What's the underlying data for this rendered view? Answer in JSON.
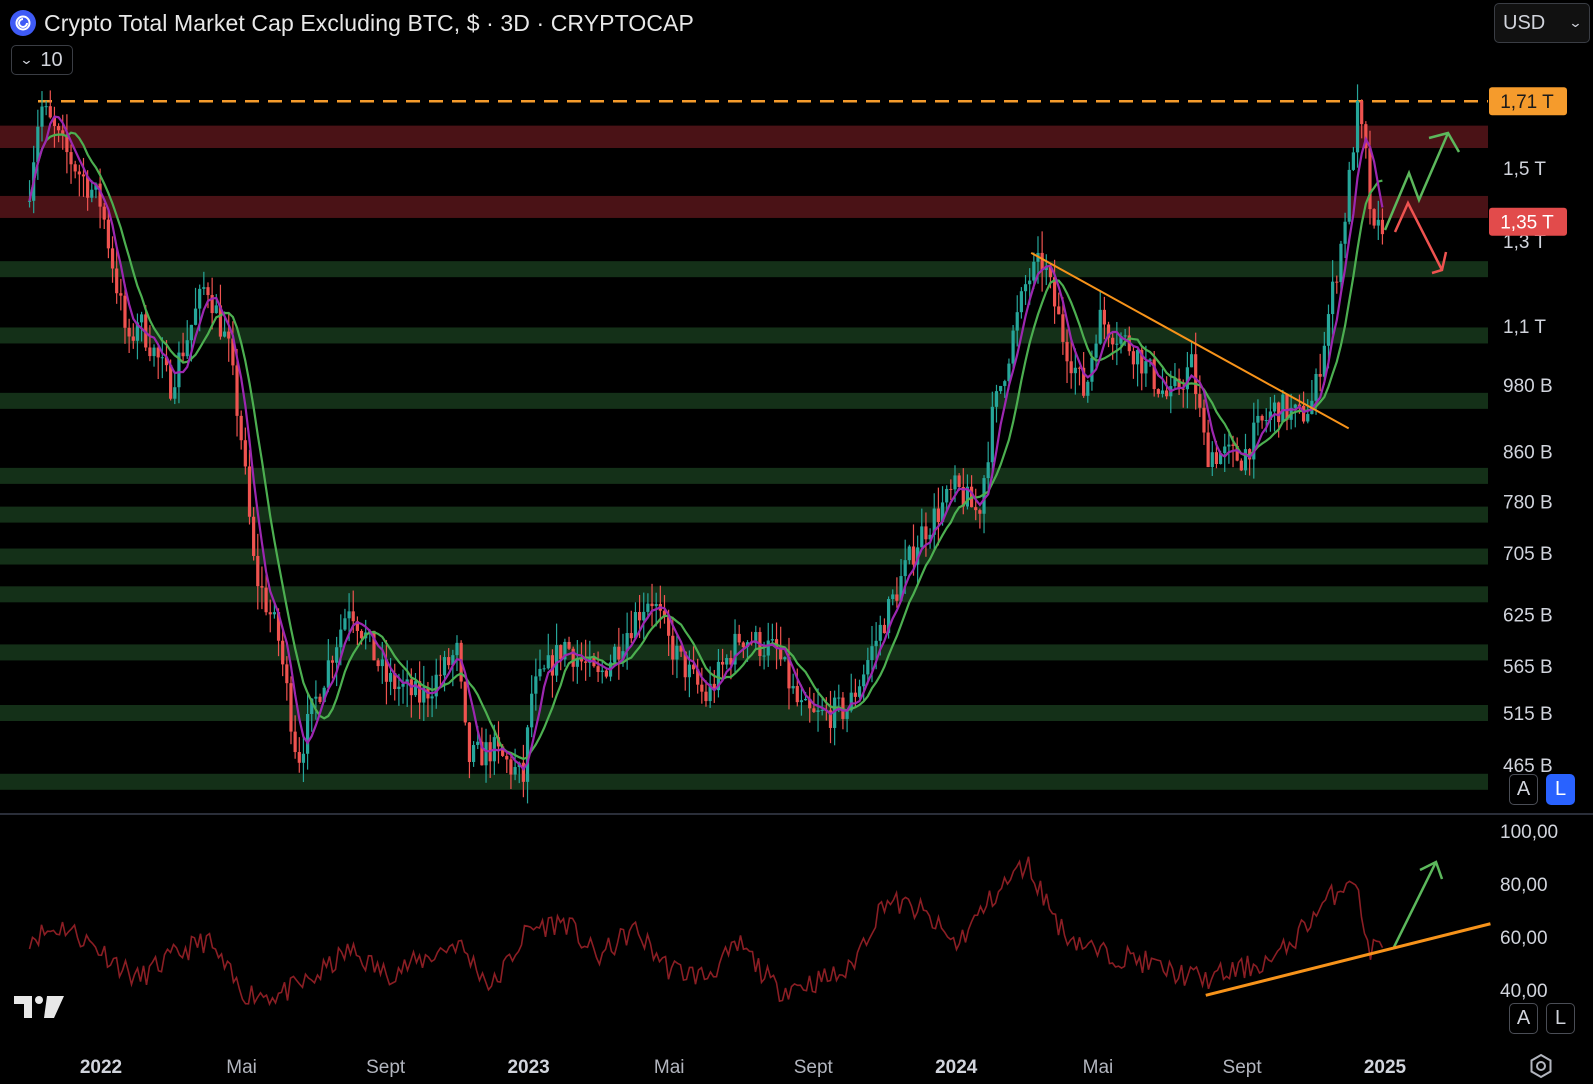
{
  "header": {
    "title": "Crypto Total Market Cap Excluding BTC, $ · 3D · CRYPTOCAP",
    "collapse_value": "10",
    "currency": "USD"
  },
  "scale_buttons": {
    "auto": "A",
    "log": "L"
  },
  "colors": {
    "background": "#000000",
    "bull_candle": "#26a69a",
    "bear_candle": "#ef5350",
    "ma_fast": "#9c27b0",
    "ma_slow": "#4caf50",
    "resistance_zone": "#4a1216",
    "support_zone": "#143018",
    "trendline": "#f7931a",
    "rsi_line": "#8b1e24",
    "up_arrow": "#5cb85c",
    "down_arrow": "#ef5350",
    "ath_tag": "#f59b2c",
    "current_tag": "#e24b4b"
  },
  "chart_data": [
    {
      "type": "candlestick",
      "title": "Crypto Total Market Cap Excluding BTC, $ · 3D · CRYPTOCAP",
      "scale": "log",
      "x_labels": [
        "2022",
        "Mai",
        "Sept",
        "2023",
        "Mai",
        "Sept",
        "2024",
        "Mai",
        "Sept",
        "2025"
      ],
      "y_ticks": [
        "1,5 T",
        "1,3 T",
        "1,1 T",
        "980 B",
        "860 B",
        "780 B",
        "705 B",
        "625 B",
        "565 B",
        "515 B",
        "465 B"
      ],
      "price_tags": [
        {
          "label": "1,71 T",
          "value": 1.71,
          "kind": "ath_dashed_line"
        },
        {
          "label": "1,35 T",
          "value": 1.35,
          "kind": "last_price"
        }
      ],
      "price_path_T": [
        {
          "t": "2021-11",
          "v": 1.45
        },
        {
          "t": "2021-11-10",
          "v": 1.7
        },
        {
          "t": "2021-12",
          "v": 1.55
        },
        {
          "t": "2022-01",
          "v": 1.4
        },
        {
          "t": "2022-01-25",
          "v": 1.05
        },
        {
          "t": "2022-02",
          "v": 1.12
        },
        {
          "t": "2022-03",
          "v": 0.98
        },
        {
          "t": "2022-04",
          "v": 1.2
        },
        {
          "t": "2022-04-20",
          "v": 1.05
        },
        {
          "t": "2022-05",
          "v": 0.88
        },
        {
          "t": "2022-05-12",
          "v": 0.68
        },
        {
          "t": "2022-06",
          "v": 0.6
        },
        {
          "t": "2022-06-18",
          "v": 0.47
        },
        {
          "t": "2022-07",
          "v": 0.52
        },
        {
          "t": "2022-08",
          "v": 0.64
        },
        {
          "t": "2022-09",
          "v": 0.55
        },
        {
          "t": "2022-10",
          "v": 0.53
        },
        {
          "t": "2022-11",
          "v": 0.58
        },
        {
          "t": "2022-11-10",
          "v": 0.47
        },
        {
          "t": "2022-12",
          "v": 0.48
        },
        {
          "t": "2022-12-30",
          "v": 0.45
        },
        {
          "t": "2023-01",
          "v": 0.53
        },
        {
          "t": "2023-02",
          "v": 0.59
        },
        {
          "t": "2023-03",
          "v": 0.55
        },
        {
          "t": "2023-04",
          "v": 0.62
        },
        {
          "t": "2023-04-15",
          "v": 0.65
        },
        {
          "t": "2023-05",
          "v": 0.59
        },
        {
          "t": "2023-06",
          "v": 0.53
        },
        {
          "t": "2023-07",
          "v": 0.6
        },
        {
          "t": "2023-08",
          "v": 0.58
        },
        {
          "t": "2023-08-20",
          "v": 0.52
        },
        {
          "t": "2023-09",
          "v": 0.51
        },
        {
          "t": "2023-10",
          "v": 0.52
        },
        {
          "t": "2023-11",
          "v": 0.62
        },
        {
          "t": "2023-12",
          "v": 0.73
        },
        {
          "t": "2024-01",
          "v": 0.8
        },
        {
          "t": "2024-01-20",
          "v": 0.76
        },
        {
          "t": "2024-02",
          "v": 0.92
        },
        {
          "t": "2024-03",
          "v": 1.2
        },
        {
          "t": "2024-03-15",
          "v": 1.25
        },
        {
          "t": "2024-04",
          "v": 1.08
        },
        {
          "t": "2024-04-20",
          "v": 0.96
        },
        {
          "t": "2024-05",
          "v": 1.12
        },
        {
          "t": "2024-06",
          "v": 1.05
        },
        {
          "t": "2024-07",
          "v": 0.95
        },
        {
          "t": "2024-07-20",
          "v": 1.02
        },
        {
          "t": "2024-08",
          "v": 0.86
        },
        {
          "t": "2024-09",
          "v": 0.85
        },
        {
          "t": "2024-09-15",
          "v": 0.9
        },
        {
          "t": "2024-10",
          "v": 0.94
        },
        {
          "t": "2024-10-20",
          "v": 0.92
        },
        {
          "t": "2024-11",
          "v": 0.95
        },
        {
          "t": "2024-11-12",
          "v": 1.1
        },
        {
          "t": "2024-11-25",
          "v": 1.3
        },
        {
          "t": "2024-12",
          "v": 1.45
        },
        {
          "t": "2024-12-08",
          "v": 1.68
        },
        {
          "t": "2024-12-15",
          "v": 1.55
        },
        {
          "t": "2024-12-22",
          "v": 1.3
        },
        {
          "t": "2024-12-30",
          "v": 1.35
        }
      ],
      "resistance_zones_T": [
        [
          1.56,
          1.63
        ],
        [
          1.36,
          1.42
        ]
      ],
      "support_zones": [
        1.23,
        1.08,
        0.95,
        0.82,
        0.76,
        0.7,
        0.65,
        0.58,
        0.515,
        0.45
      ],
      "trendline": [
        {
          "t": "2024-03-05",
          "v": 1.27
        },
        {
          "t": "2024-12-01",
          "v": 0.9
        }
      ]
    },
    {
      "type": "line",
      "indicator": "RSI",
      "y_ticks": [
        "100,00",
        "80,00",
        "60,00",
        "40,00"
      ],
      "ylim": [
        40,
        100
      ],
      "values": [
        {
          "t": "2021-11",
          "v": 60
        },
        {
          "t": "2021-12",
          "v": 64
        },
        {
          "t": "2022-01",
          "v": 55
        },
        {
          "t": "2022-02",
          "v": 44
        },
        {
          "t": "2022-03",
          "v": 52
        },
        {
          "t": "2022-04",
          "v": 59
        },
        {
          "t": "2022-05",
          "v": 39
        },
        {
          "t": "2022-06",
          "v": 38
        },
        {
          "t": "2022-07",
          "v": 44
        },
        {
          "t": "2022-08",
          "v": 55
        },
        {
          "t": "2022-09",
          "v": 46
        },
        {
          "t": "2022-10",
          "v": 51
        },
        {
          "t": "2022-11",
          "v": 58
        },
        {
          "t": "2022-12",
          "v": 41
        },
        {
          "t": "2023-01",
          "v": 63
        },
        {
          "t": "2023-02",
          "v": 66
        },
        {
          "t": "2023-03",
          "v": 52
        },
        {
          "t": "2023-04",
          "v": 63
        },
        {
          "t": "2023-05",
          "v": 48
        },
        {
          "t": "2023-06",
          "v": 45
        },
        {
          "t": "2023-07",
          "v": 57
        },
        {
          "t": "2023-08",
          "v": 40
        },
        {
          "t": "2023-09",
          "v": 43
        },
        {
          "t": "2023-10",
          "v": 47
        },
        {
          "t": "2023-11",
          "v": 74
        },
        {
          "t": "2023-12",
          "v": 70
        },
        {
          "t": "2024-01",
          "v": 57
        },
        {
          "t": "2024-02",
          "v": 75
        },
        {
          "t": "2024-03",
          "v": 88
        },
        {
          "t": "2024-04",
          "v": 62
        },
        {
          "t": "2024-05",
          "v": 54
        },
        {
          "t": "2024-06",
          "v": 52
        },
        {
          "t": "2024-07",
          "v": 47
        },
        {
          "t": "2024-08",
          "v": 44
        },
        {
          "t": "2024-09",
          "v": 48
        },
        {
          "t": "2024-10",
          "v": 52
        },
        {
          "t": "2024-11",
          "v": 68
        },
        {
          "t": "2024-12-05",
          "v": 84
        },
        {
          "t": "2024-12-18",
          "v": 55
        },
        {
          "t": "2024-12-30",
          "v": 57
        }
      ],
      "support_trendline": [
        {
          "t": "2024-08-01",
          "v": 38
        },
        {
          "t": "2025-04-01",
          "v": 65
        }
      ]
    }
  ]
}
